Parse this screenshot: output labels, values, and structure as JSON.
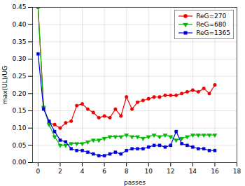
{
  "chart_data": {
    "type": "line",
    "xlabel": "passes",
    "ylabel": "max(UL)/UG",
    "xlim": [
      -0.5,
      18
    ],
    "ylim": [
      0,
      0.45
    ],
    "xticks": [
      0,
      2,
      4,
      6,
      8,
      10,
      12,
      14,
      16,
      18
    ],
    "yticks": [
      {
        "value": 0,
        "label": "0.00"
      },
      0.05,
      {
        "value": 0.1,
        "label": "0.10"
      },
      0.15,
      {
        "value": 0.2,
        "label": "0.20"
      },
      0.25,
      {
        "value": 0.3,
        "label": "0.30"
      },
      0.35,
      {
        "value": 0.4,
        "label": "0.40"
      },
      0.45
    ],
    "grid": true,
    "legend": "upper right",
    "x": [
      0,
      0.5,
      1,
      1.5,
      2,
      2.5,
      3,
      3.5,
      4,
      4.5,
      5,
      5.5,
      6,
      6.5,
      7,
      7.5,
      8,
      8.5,
      9,
      9.5,
      10,
      10.5,
      11,
      11.5,
      12,
      12.5,
      13,
      13.5,
      14,
      14.5,
      15,
      15.5,
      16
    ],
    "series": [
      {
        "name": "ReG=270",
        "color": "#ee0000",
        "marker": "circle",
        "values": [
          0.45,
          0.16,
          0.115,
          0.11,
          0.1,
          0.115,
          0.12,
          0.165,
          0.17,
          0.155,
          0.145,
          0.13,
          0.135,
          0.13,
          0.155,
          0.135,
          0.19,
          0.155,
          0.175,
          0.18,
          0.185,
          0.19,
          0.19,
          0.195,
          0.195,
          0.195,
          0.2,
          0.205,
          0.21,
          0.205,
          0.215,
          0.2,
          0.225
        ]
      },
      {
        "name": "ReG=680",
        "color": "#00bb00",
        "marker": "triangle_down",
        "values": [
          0.45,
          0.16,
          0.11,
          0.075,
          0.05,
          0.05,
          0.055,
          0.055,
          0.055,
          0.06,
          0.065,
          0.065,
          0.07,
          0.075,
          0.075,
          0.075,
          0.08,
          0.075,
          0.075,
          0.07,
          0.075,
          0.08,
          0.075,
          0.08,
          0.075,
          0.065,
          0.07,
          0.075,
          0.08,
          0.08,
          0.08,
          0.08,
          0.08
        ]
      },
      {
        "name": "ReG=1365",
        "color": "#0000dd",
        "marker": "square",
        "values": [
          0.315,
          0.155,
          0.12,
          0.09,
          0.065,
          0.06,
          0.04,
          0.035,
          0.035,
          0.03,
          0.025,
          0.02,
          0.02,
          0.025,
          0.03,
          0.025,
          0.035,
          0.04,
          0.04,
          0.04,
          0.045,
          0.05,
          0.05,
          0.045,
          0.05,
          0.09,
          0.055,
          0.05,
          0.045,
          0.04,
          0.04,
          0.035,
          0.035
        ]
      }
    ]
  }
}
